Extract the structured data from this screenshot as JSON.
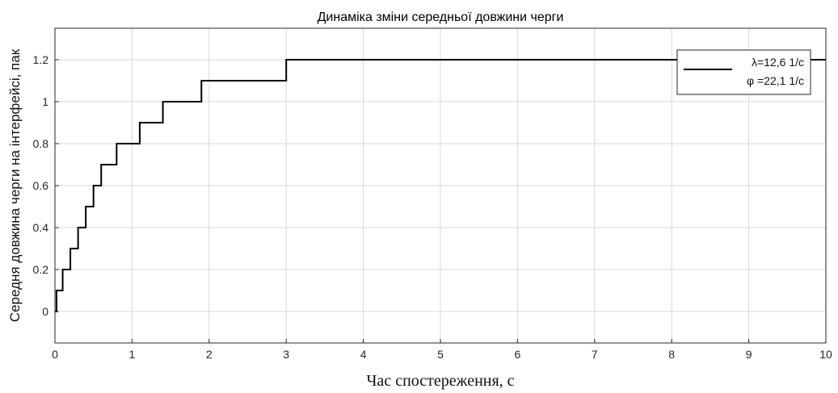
{
  "chart_data": {
    "type": "line",
    "title": "Динаміка зміни середньої довжини черги",
    "xlabel": "Час спостереження, с",
    "ylabel": "Середня довжина черги на інтерфейсі, пак",
    "xlim": [
      0,
      10
    ],
    "ylim": [
      -0.15,
      1.35
    ],
    "xticks": [
      "0",
      "1",
      "2",
      "3",
      "4",
      "5",
      "6",
      "7",
      "8",
      "9",
      "10"
    ],
    "yticks": [
      "0",
      "0.2",
      "0.4",
      "0.6",
      "0.8",
      "1",
      "1.2"
    ],
    "grid": true,
    "legend_position": "top-right",
    "legend": [
      "λ=12,6 1/c",
      "φ =22,1 1/c"
    ],
    "series": [
      {
        "step": "post",
        "color": "#000000",
        "x": [
          0,
          0.02,
          0.1,
          0.2,
          0.3,
          0.4,
          0.5,
          0.6,
          0.8,
          1.1,
          1.4,
          1.9,
          3.0,
          10
        ],
        "y": [
          0,
          0.1,
          0.2,
          0.3,
          0.4,
          0.5,
          0.6,
          0.7,
          0.8,
          0.9,
          1.0,
          1.1,
          1.2,
          1.2
        ]
      }
    ]
  }
}
